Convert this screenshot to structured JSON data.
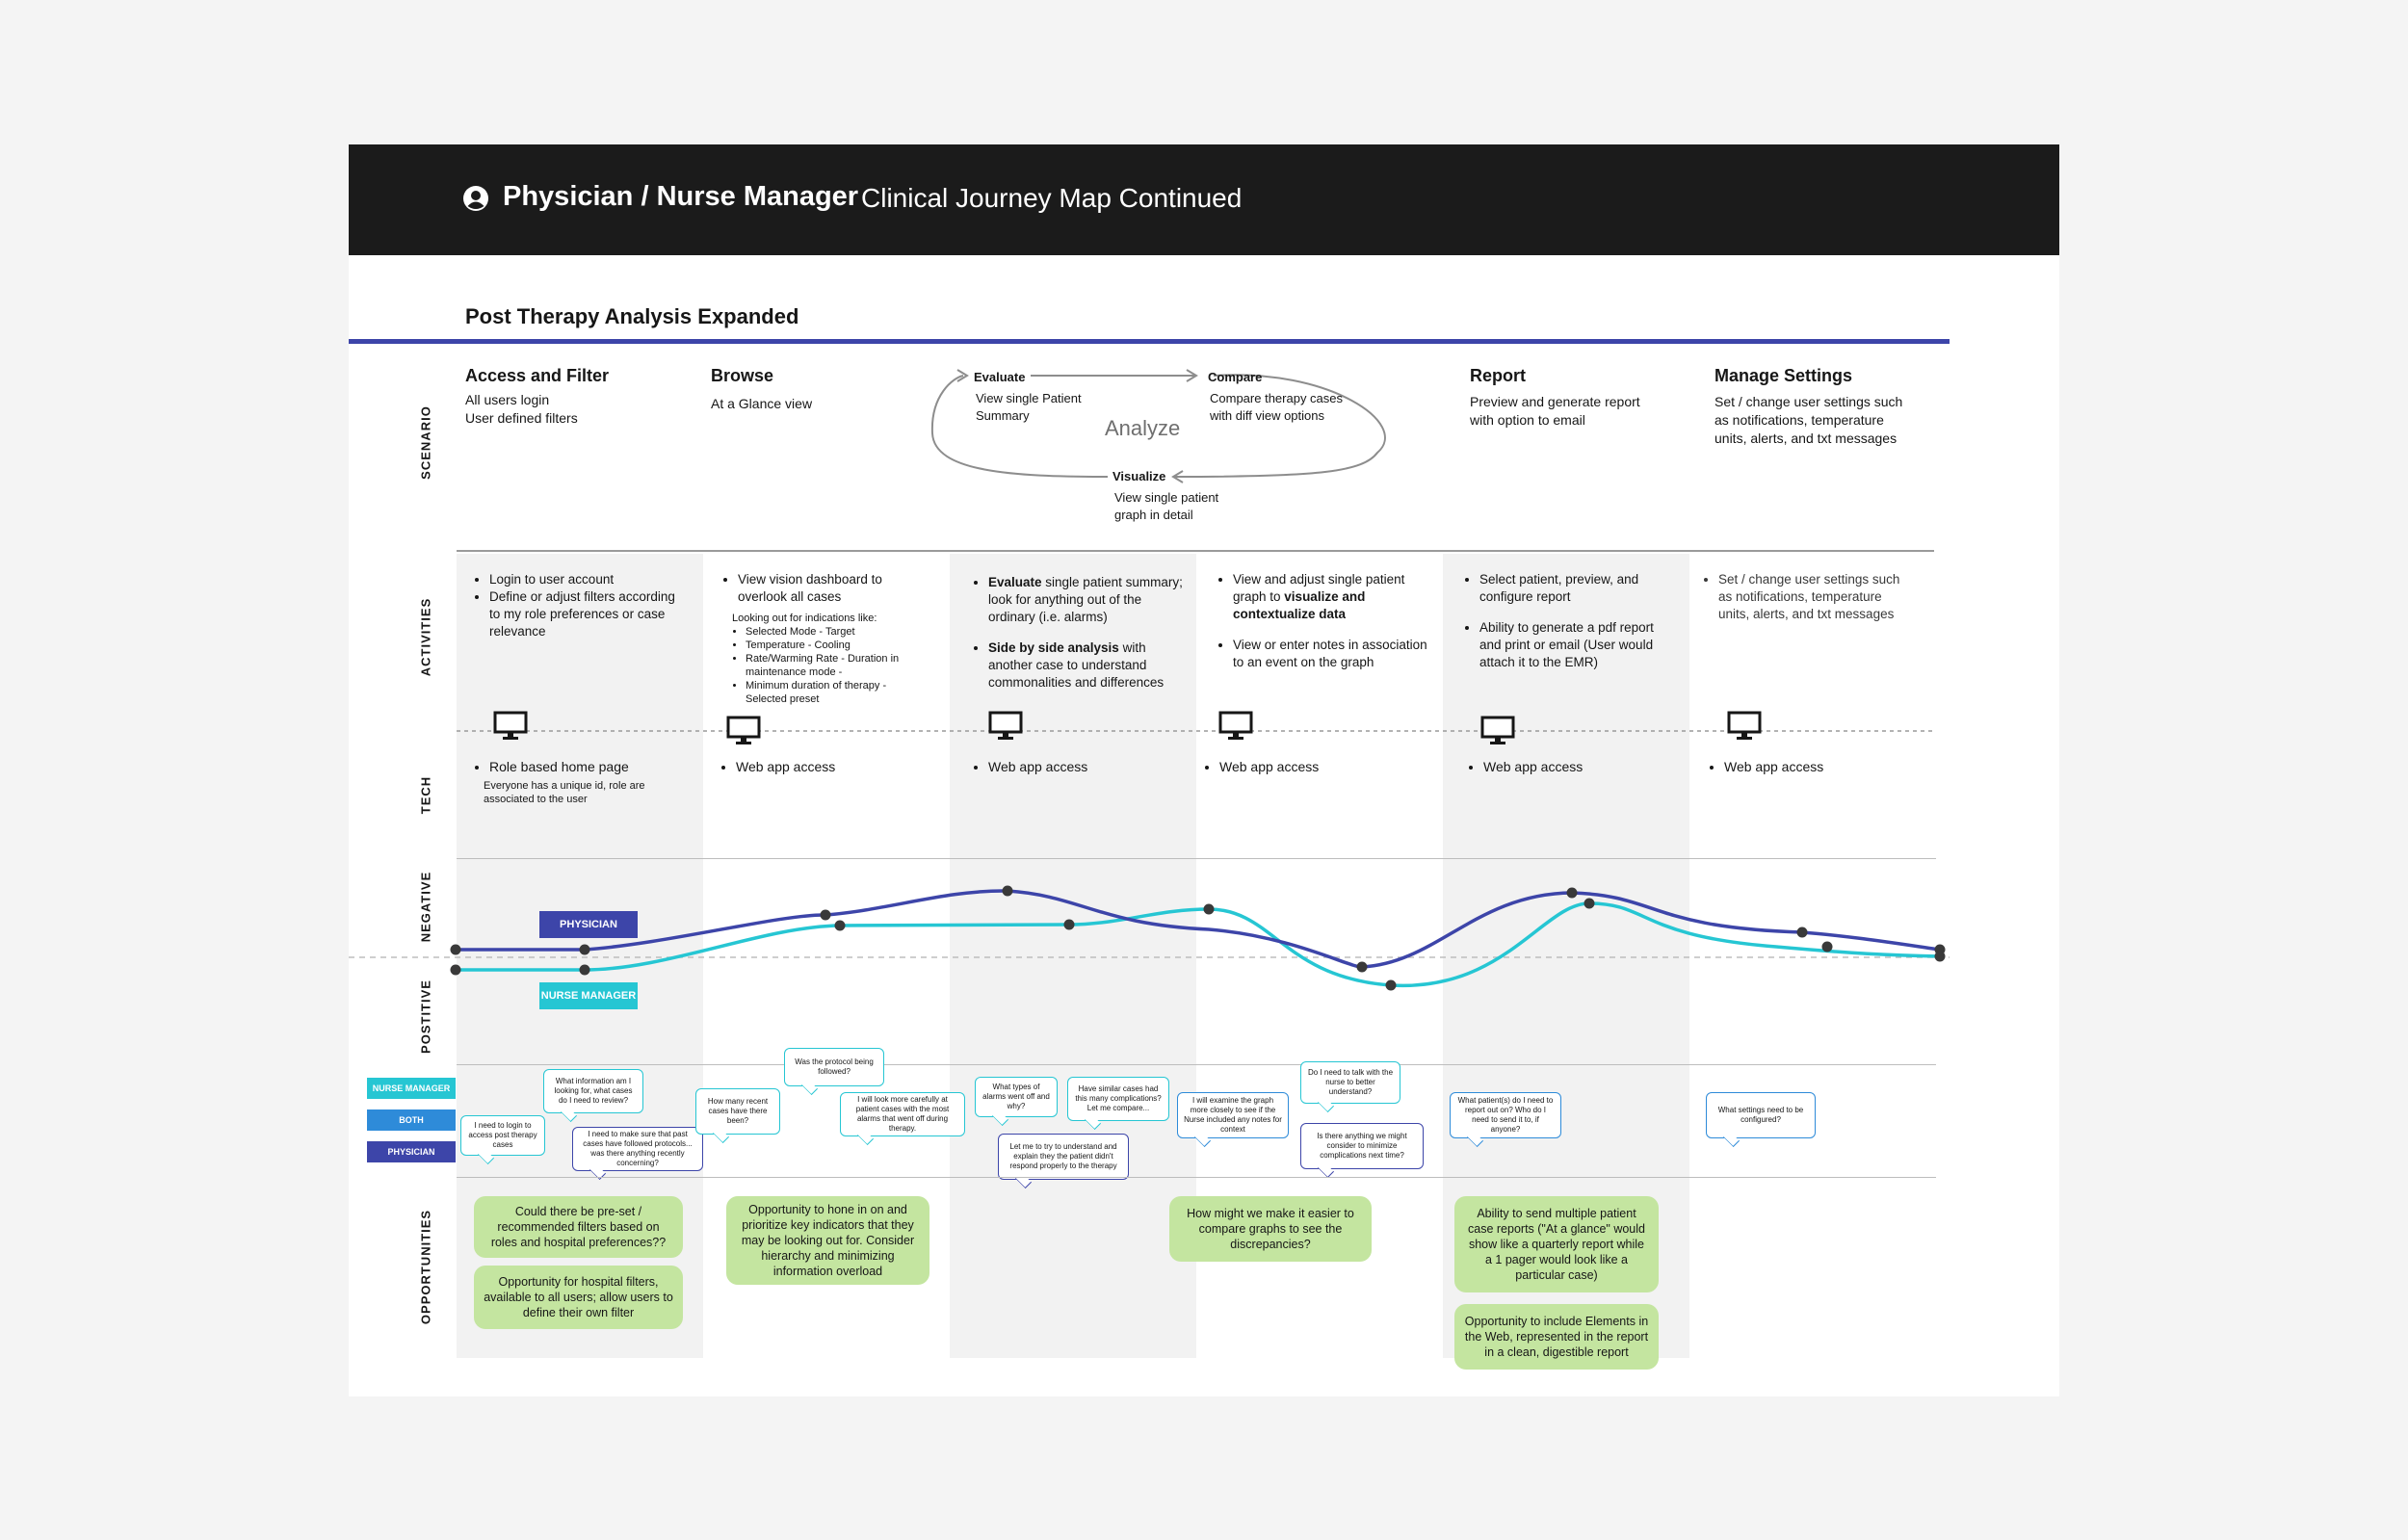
{
  "header": {
    "role": "Physician / Nurse Manager",
    "subtitle": "Clinical Journey Map Continued"
  },
  "section_title": "Post Therapy Analysis Expanded",
  "row_labels": {
    "scenario": "SCENARIO",
    "activities": "ACTIVITIES",
    "tech": "TECH",
    "negative": "NEGATIVE",
    "positive": "POSTITIVE",
    "opportunities": "OPPORTUNITIES"
  },
  "scenario": {
    "access": {
      "title": "Access and Filter",
      "desc": "All users login\nUser defined filters"
    },
    "browse": {
      "title": "Browse",
      "desc": "At a Glance view"
    },
    "evaluate": {
      "title": "Evaluate",
      "desc": "View single Patient\nSummary"
    },
    "compare": {
      "title": "Compare",
      "desc": "Compare therapy cases\nwith diff view options"
    },
    "visualize": {
      "title": "Visualize",
      "desc": "View single patient\ngraph in detail"
    },
    "analyze": "Analyze",
    "report": {
      "title": "Report",
      "desc": "Preview and generate report\nwith option to email"
    },
    "settings": {
      "title": "Manage Settings",
      "desc": "Set / change user settings such\nas notifications, temperature\nunits, alerts, and txt messages"
    }
  },
  "activities": {
    "col1": [
      "Login to user account",
      "Define or adjust filters according to my role preferences or case relevance"
    ],
    "col2": {
      "item": "View vision dashboard to overlook all cases",
      "note": "Looking out for indications like:",
      "list": [
        "Selected Mode - Target",
        "Temperature - Cooling",
        "Rate/Warming Rate - Duration in maintenance mode -",
        "Minimum duration of therapy - Selected preset"
      ]
    },
    "col3": {
      "b1_bold": "Evaluate",
      "b1_rest": " single patient summary; look for anything out of the ordinary (i.e. alarms)",
      "b2_bold": "Side by side analysis",
      "b2_rest": " with another case to understand commonalities and differences"
    },
    "col4": {
      "b1_pre": "View and adjust single patient graph to ",
      "b1_bold": "visualize and contextualize data",
      "b2": "View or enter notes in association to an event on the graph"
    },
    "col5": [
      "Select patient, preview, and configure report",
      "Ability to generate a pdf report and print or email (User would attach it to the EMR)"
    ],
    "col6": [
      "Set / change user settings such as notifications, temperature units, alerts, and txt messages"
    ]
  },
  "tech": {
    "col1": {
      "item": "Role based home page",
      "note": "Everyone has a unique id, role are associated to the user"
    },
    "col2": "Web app access",
    "col3": "Web app access",
    "col4": "Web app access",
    "col5": "Web app access",
    "col6": "Web app access"
  },
  "emotion_tags": {
    "physician": "PHYSICIAN",
    "nurse_manager": "NURSE MANAGER"
  },
  "legend": {
    "nurse_manager": "NURSE MANAGER",
    "both": "BOTH",
    "physician": "PHYSICIAN"
  },
  "bubbles": {
    "b1": "I need to login to access post therapy cases",
    "b2": "What information am I looking for, what cases do I need to review?",
    "b3": "I need to make sure that past cases have followed protocols... was there anything recently concerning?",
    "b4": "How many recent cases have there been?",
    "b5": "Was the protocol being followed?",
    "b6": "I will look more carefully at patient cases with the most alarms that went off during therapy.",
    "b7": "What types of alarms went off and why?",
    "b8": "Have similar cases had this many complications? Let me compare...",
    "b9": "Let me to try to understand and explain they the patient didn't respond properly to the therapy",
    "b10": "I will examine the graph more closely to see if the Nurse included any notes for context",
    "b11": "Do I need to talk with the nurse to better understand?",
    "b12": "Is there anything we might consider to minimize complications next time?",
    "b13": "What patient(s) do I need to report out on? Who do I need to send it to, if anyone?",
    "b14": "What settings need to be configured?"
  },
  "opportunities": {
    "o1": "Could there be pre-set / recommended filters based on roles and hospital preferences??",
    "o2": "Opportunity for hospital filters, available to all users; allow users to define their own filter",
    "o3": "Opportunity to hone in on and prioritize key indicators that they may be looking out for. Consider hierarchy and minimizing information overload",
    "o4": "How might we make it easier to compare graphs to see the discrepancies?",
    "o5": "Ability to send multiple patient case reports (\"At a glance\" would show like a quarterly report while a 1 pager would look like a particular case)",
    "o6": "Opportunity to include Elements in the Web, represented in the report in a clean, digestible report"
  },
  "colors": {
    "physician": "#3d45a9",
    "nurse_manager": "#26c6d3",
    "both": "#2e8bd9",
    "opportunity": "#c4e5a0",
    "header_bg": "#1b1b1b"
  }
}
